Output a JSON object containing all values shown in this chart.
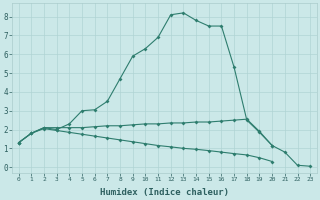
{
  "xlabel": "Humidex (Indice chaleur)",
  "background_color": "#cbe8e8",
  "grid_color": "#b0d4d4",
  "line_color": "#2e7d6e",
  "xlim": [
    -0.5,
    23.5
  ],
  "ylim": [
    -0.3,
    8.7
  ],
  "xticks": [
    0,
    1,
    2,
    3,
    4,
    5,
    6,
    7,
    8,
    9,
    10,
    11,
    12,
    13,
    14,
    15,
    16,
    17,
    18,
    19,
    20,
    21,
    22,
    23
  ],
  "yticks": [
    0,
    1,
    2,
    3,
    4,
    5,
    6,
    7,
    8
  ],
  "line1_x": [
    0,
    1,
    2,
    3,
    4,
    5,
    6,
    7,
    8,
    9,
    10,
    11,
    12,
    13,
    14,
    15,
    16,
    17,
    18,
    19,
    20,
    21,
    22,
    23
  ],
  "line1_y": [
    1.3,
    1.8,
    2.1,
    2.0,
    2.3,
    3.0,
    3.05,
    3.5,
    4.7,
    5.9,
    6.3,
    6.9,
    8.1,
    8.2,
    7.8,
    7.5,
    7.5,
    5.3,
    2.5,
    1.85,
    1.15,
    0.8,
    0.1,
    0.05
  ],
  "line2_x": [
    0,
    1,
    2,
    3,
    4,
    5,
    6,
    7,
    8,
    9,
    10,
    11,
    12,
    13,
    14,
    15,
    16,
    17,
    18,
    19,
    20,
    21,
    22,
    23
  ],
  "line2_y": [
    1.3,
    1.8,
    2.1,
    2.1,
    2.1,
    2.1,
    2.15,
    2.2,
    2.2,
    2.25,
    2.3,
    2.3,
    2.35,
    2.35,
    2.4,
    2.4,
    2.45,
    2.5,
    2.55,
    1.9,
    1.15,
    null,
    null,
    null
  ],
  "line3_x": [
    0,
    1,
    2,
    3,
    4,
    5,
    6,
    7,
    8,
    9,
    10,
    11,
    12,
    13,
    14,
    15,
    16,
    17,
    18,
    19,
    20,
    21,
    22,
    23
  ],
  "line3_y": [
    1.3,
    1.8,
    2.05,
    1.95,
    1.85,
    1.75,
    1.65,
    1.55,
    1.45,
    1.35,
    1.25,
    1.15,
    1.08,
    1.0,
    0.95,
    0.88,
    0.8,
    0.72,
    0.65,
    0.5,
    0.3,
    null,
    null,
    null
  ]
}
